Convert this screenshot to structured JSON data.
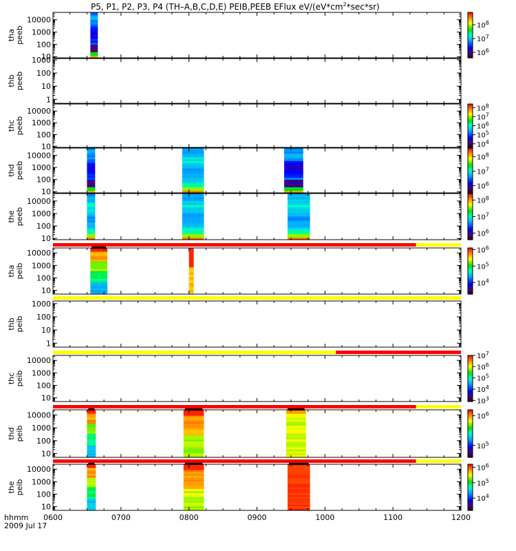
{
  "chart_data": {
    "type": "heatmap",
    "title": "P5, P1, P2, P3, P4 (TH-A,B,C,D,E) PEIB,PEEB EFlux eV/(eV*cm^2*sec*sr)",
    "title_parts": {
      "main": "P5, P1, P2, P3, P4 (TH–A,B,C,D,E) PEIB,PEEB EFlux eV/(eV*cm",
      "sup": "2",
      "tail": "*sec*sr)"
    },
    "x_axis": {
      "unit_label": "hhmm",
      "date_label": "2009 Jul 17",
      "ticks": [
        "0600",
        "0700",
        "0800",
        "0900",
        "1000",
        "1100",
        "1200"
      ],
      "range_hours": [
        6,
        12
      ]
    },
    "panels": [
      {
        "probe": "tha",
        "product": "peeb",
        "yticks": [
          "10",
          "100",
          "1000",
          "10000"
        ],
        "ylog": [
          0.9,
          4.6
        ],
        "cbar": {
          "min": 5.6,
          "max": 8.9,
          "ticks": [
            6,
            7,
            8
          ]
        },
        "statusbar": null,
        "bursts": [
          {
            "start": 6.55,
            "end": 6.66,
            "mode": "e_dark"
          }
        ]
      },
      {
        "probe": "thb",
        "product": "peeb",
        "yticks": [
          "1",
          "10",
          "100",
          "1000"
        ],
        "ylog": [
          -0.3,
          3.1
        ],
        "cbar": null,
        "statusbar": null,
        "bursts": []
      },
      {
        "probe": "thc",
        "product": "peeb",
        "yticks": [
          "10",
          "100",
          "1000",
          "10000"
        ],
        "ylog": [
          0.9,
          4.6
        ],
        "cbar": {
          "min": 3.6,
          "max": 8.4,
          "ticks": [
            4,
            5,
            6,
            7,
            8
          ]
        },
        "statusbar": null,
        "bursts": []
      },
      {
        "probe": "thd",
        "product": "peeb",
        "yticks": [
          "10",
          "100",
          "1000",
          "10000"
        ],
        "ylog": [
          0.9,
          4.6
        ],
        "cbar": {
          "min": 5.5,
          "max": 8.6,
          "ticks": [
            6,
            7,
            8
          ]
        },
        "statusbar": null,
        "bursts": [
          {
            "start": 6.5,
            "end": 6.62,
            "mode": "e_dark"
          },
          {
            "start": 7.9,
            "end": 8.22,
            "mode": "e_light"
          },
          {
            "start": 9.4,
            "end": 9.68,
            "mode": "e_dark"
          }
        ]
      },
      {
        "probe": "the",
        "product": "peeb",
        "yticks": [
          "10",
          "100",
          "1000",
          "10000"
        ],
        "ylog": [
          0.9,
          4.6
        ],
        "cbar": {
          "min": 5.6,
          "max": 8.4,
          "ticks": [
            6,
            7,
            8
          ]
        },
        "statusbar": null,
        "bursts": [
          {
            "start": 6.5,
            "end": 6.62,
            "mode": "e_light"
          },
          {
            "start": 7.9,
            "end": 8.22,
            "mode": "e_light"
          },
          {
            "start": 9.45,
            "end": 9.78,
            "mode": "e_light"
          }
        ]
      },
      {
        "probe": "tha",
        "product": "peib",
        "yticks": [
          "10",
          "100",
          "1000",
          "10000"
        ],
        "ylog": [
          0.7,
          4.4
        ],
        "cbar": {
          "min": 3.3,
          "max": 6.1,
          "ticks": [
            4,
            5,
            6
          ]
        },
        "statusbar": [
          {
            "start": 6,
            "end": 11.34,
            "color": "#ff0000"
          },
          {
            "start": 11.34,
            "end": 12,
            "color": "#ffff00"
          }
        ],
        "bursts": [
          {
            "start": 6.55,
            "end": 6.8,
            "mode": "i_full"
          },
          {
            "start": 8.0,
            "end": 8.07,
            "mode": "i_hot"
          }
        ]
      },
      {
        "probe": "thb",
        "product": "peib",
        "yticks": [
          "1",
          "10",
          "100",
          "1000"
        ],
        "ylog": [
          -0.3,
          3.2
        ],
        "cbar": null,
        "statusbar": [
          {
            "start": 6,
            "end": 12,
            "color": "#ffff00"
          }
        ],
        "bursts": []
      },
      {
        "probe": "thc",
        "product": "peib",
        "yticks": [
          "10",
          "100",
          "1000",
          "10000"
        ],
        "ylog": [
          0.7,
          4.4
        ],
        "cbar": {
          "min": 2.9,
          "max": 7.0,
          "ticks": [
            3,
            4,
            5,
            6,
            7
          ]
        },
        "statusbar": [
          {
            "start": 6,
            "end": 10.16,
            "color": "#ffff00"
          },
          {
            "start": 10.16,
            "end": 12,
            "color": "#ff0000"
          }
        ],
        "bursts": []
      },
      {
        "probe": "thd",
        "product": "peib",
        "yticks": [
          "10",
          "100",
          "1000",
          "10000"
        ],
        "ylog": [
          0.7,
          4.4
        ],
        "cbar": {
          "min": 4.6,
          "max": 6.2,
          "ticks": [
            5,
            6
          ]
        },
        "statusbar": [
          {
            "start": 6,
            "end": 11.34,
            "color": "#ff0000"
          },
          {
            "start": 11.34,
            "end": 12,
            "color": "#ffff00"
          }
        ],
        "bursts": [
          {
            "start": 6.5,
            "end": 6.63,
            "mode": "i_full"
          },
          {
            "start": 7.92,
            "end": 8.22,
            "mode": "i_warm"
          },
          {
            "start": 9.43,
            "end": 9.72,
            "mode": "i_yellow"
          }
        ]
      },
      {
        "probe": "the",
        "product": "peib",
        "yticks": [
          "10",
          "100",
          "1000",
          "10000"
        ],
        "ylog": [
          0.7,
          4.4
        ],
        "cbar": {
          "min": 3.2,
          "max": 6.2,
          "ticks": [
            4,
            5,
            6
          ]
        },
        "statusbar": [
          {
            "start": 6,
            "end": 11.34,
            "color": "#ff0000"
          },
          {
            "start": 11.34,
            "end": 12,
            "color": "#ffff00"
          }
        ],
        "bursts": [
          {
            "start": 6.5,
            "end": 6.63,
            "mode": "i_full"
          },
          {
            "start": 7.92,
            "end": 8.22,
            "mode": "i_warm"
          },
          {
            "start": 9.45,
            "end": 9.78,
            "mode": "i_red"
          }
        ]
      }
    ]
  }
}
